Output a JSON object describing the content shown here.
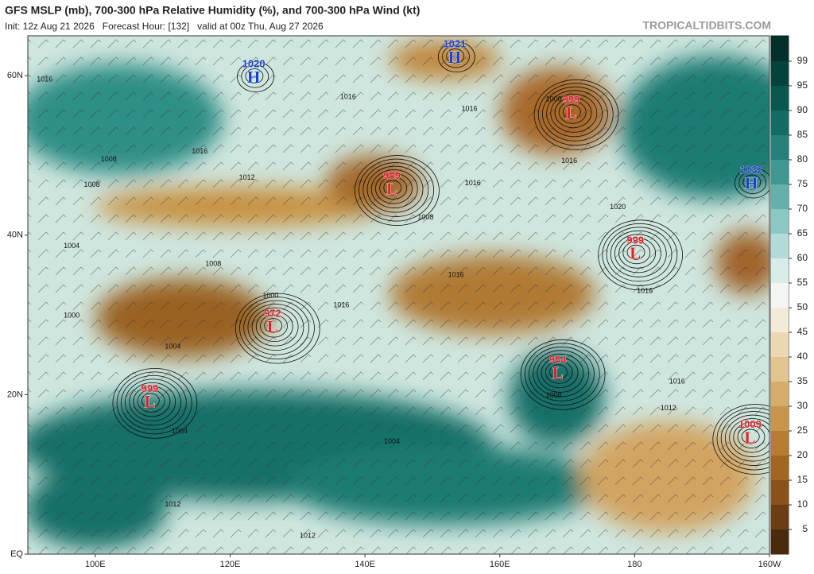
{
  "header": {
    "title": "GFS MSLP (mb), 700-300 hPa Relative Humidity (%), and 700-300 hPa Wind (kt)",
    "subtitle": "Init: 12z Aug 21 2026   Forecast Hour: [132]   valid at 00z Thu, Aug 27 2026",
    "credit": "TROPICALTIDBITS.COM"
  },
  "map": {
    "lon_range": [
      90,
      200
    ],
    "lat_range": [
      0,
      65
    ],
    "lon_ticks": [
      {
        "value": 100,
        "label": "100E"
      },
      {
        "value": 120,
        "label": "120E"
      },
      {
        "value": 140,
        "label": "140E"
      },
      {
        "value": 160,
        "label": "160E"
      },
      {
        "value": 180,
        "label": "180"
      },
      {
        "value": 200,
        "label": "160W"
      }
    ],
    "lat_ticks": [
      {
        "value": 60,
        "label": "60N"
      },
      {
        "value": 40,
        "label": "40N"
      },
      {
        "value": 20,
        "label": "20N"
      },
      {
        "value": 0,
        "label": "EQ"
      }
    ],
    "centers": [
      {
        "kind": "H",
        "pressure": 1020,
        "lon": 123.5,
        "lat": 60,
        "color": "#1a3fd0"
      },
      {
        "kind": "H",
        "pressure": 1021,
        "lon": 153.3,
        "lat": 62.5,
        "color": "#1a3fd0"
      },
      {
        "kind": "L",
        "pressure": 999,
        "lon": 170.6,
        "lat": 55.5,
        "color": "#e0202a"
      },
      {
        "kind": "L",
        "pressure": 989,
        "lon": 144,
        "lat": 46,
        "color": "#e0202a"
      },
      {
        "kind": "H",
        "pressure": 1032,
        "lon": 197.3,
        "lat": 46.7,
        "color": "#1a3fd0"
      },
      {
        "kind": "L",
        "pressure": 999,
        "lon": 180.1,
        "lat": 37.9,
        "color": "#e0202a"
      },
      {
        "kind": "L",
        "pressure": 972,
        "lon": 126.3,
        "lat": 28.7,
        "color": "#e0202a"
      },
      {
        "kind": "L",
        "pressure": 984,
        "lon": 168.6,
        "lat": 22.9,
        "color": "#e0202a"
      },
      {
        "kind": "L",
        "pressure": 999,
        "lon": 108.1,
        "lat": 19.3,
        "color": "#e0202a"
      },
      {
        "kind": "L",
        "pressure": 1009,
        "lon": 197.1,
        "lat": 14.8,
        "color": "#e0202a"
      }
    ],
    "isobar_labels": [
      {
        "text": "1016",
        "lon": 92.5,
        "lat": 59.5
      },
      {
        "text": "1016",
        "lon": 137.5,
        "lat": 57.3
      },
      {
        "text": "1016",
        "lon": 115.5,
        "lat": 50.5
      },
      {
        "text": "1016",
        "lon": 155.5,
        "lat": 55.8
      },
      {
        "text": "1016",
        "lon": 170.3,
        "lat": 49.3
      },
      {
        "text": "1016",
        "lon": 156,
        "lat": 46.5
      },
      {
        "text": "1016",
        "lon": 186.3,
        "lat": 21.6
      },
      {
        "text": "1016",
        "lon": 136.5,
        "lat": 31.2
      },
      {
        "text": "1016",
        "lon": 181.5,
        "lat": 33
      },
      {
        "text": "1016",
        "lon": 153.5,
        "lat": 35
      },
      {
        "text": "1008",
        "lon": 102,
        "lat": 49.5
      },
      {
        "text": "1008",
        "lon": 168,
        "lat": 57
      },
      {
        "text": "1008",
        "lon": 149,
        "lat": 42.2
      },
      {
        "text": "1008",
        "lon": 168,
        "lat": 19.9
      },
      {
        "text": "1008",
        "lon": 117.5,
        "lat": 36.4
      },
      {
        "text": "1008",
        "lon": 99.5,
        "lat": 46.3
      },
      {
        "text": "1012",
        "lon": 122.5,
        "lat": 47.2
      },
      {
        "text": "1012",
        "lon": 185,
        "lat": 18.3
      },
      {
        "text": "1012",
        "lon": 111.5,
        "lat": 6.2
      },
      {
        "text": "1012",
        "lon": 131.5,
        "lat": 2.3
      },
      {
        "text": "1004",
        "lon": 96.5,
        "lat": 38.6
      },
      {
        "text": "1004",
        "lon": 112.5,
        "lat": 15.4
      },
      {
        "text": "1004",
        "lon": 111.5,
        "lat": 26
      },
      {
        "text": "1004",
        "lon": 144,
        "lat": 14.1
      },
      {
        "text": "1000",
        "lon": 96.5,
        "lat": 29.9
      },
      {
        "text": "1000",
        "lon": 126,
        "lat": 32.4
      },
      {
        "text": "1020",
        "lon": 177.5,
        "lat": 43.5
      }
    ]
  },
  "colorbar": {
    "ticks": [
      5,
      10,
      15,
      20,
      25,
      30,
      35,
      40,
      45,
      50,
      55,
      60,
      65,
      70,
      75,
      80,
      85,
      90,
      95,
      99
    ],
    "colors": [
      "#4a2a0c",
      "#6b3d12",
      "#8a5218",
      "#a2661f",
      "#b77c2e",
      "#c8964a",
      "#d6ad6a",
      "#e2c48e",
      "#ecd9b4",
      "#f3ead8",
      "#f4f6f4",
      "#d8ecea",
      "#b3dcd8",
      "#8cc8c3",
      "#64b0aa",
      "#3f9891",
      "#248179",
      "#126c64",
      "#085850",
      "#03433d",
      "#022f2a"
    ]
  }
}
